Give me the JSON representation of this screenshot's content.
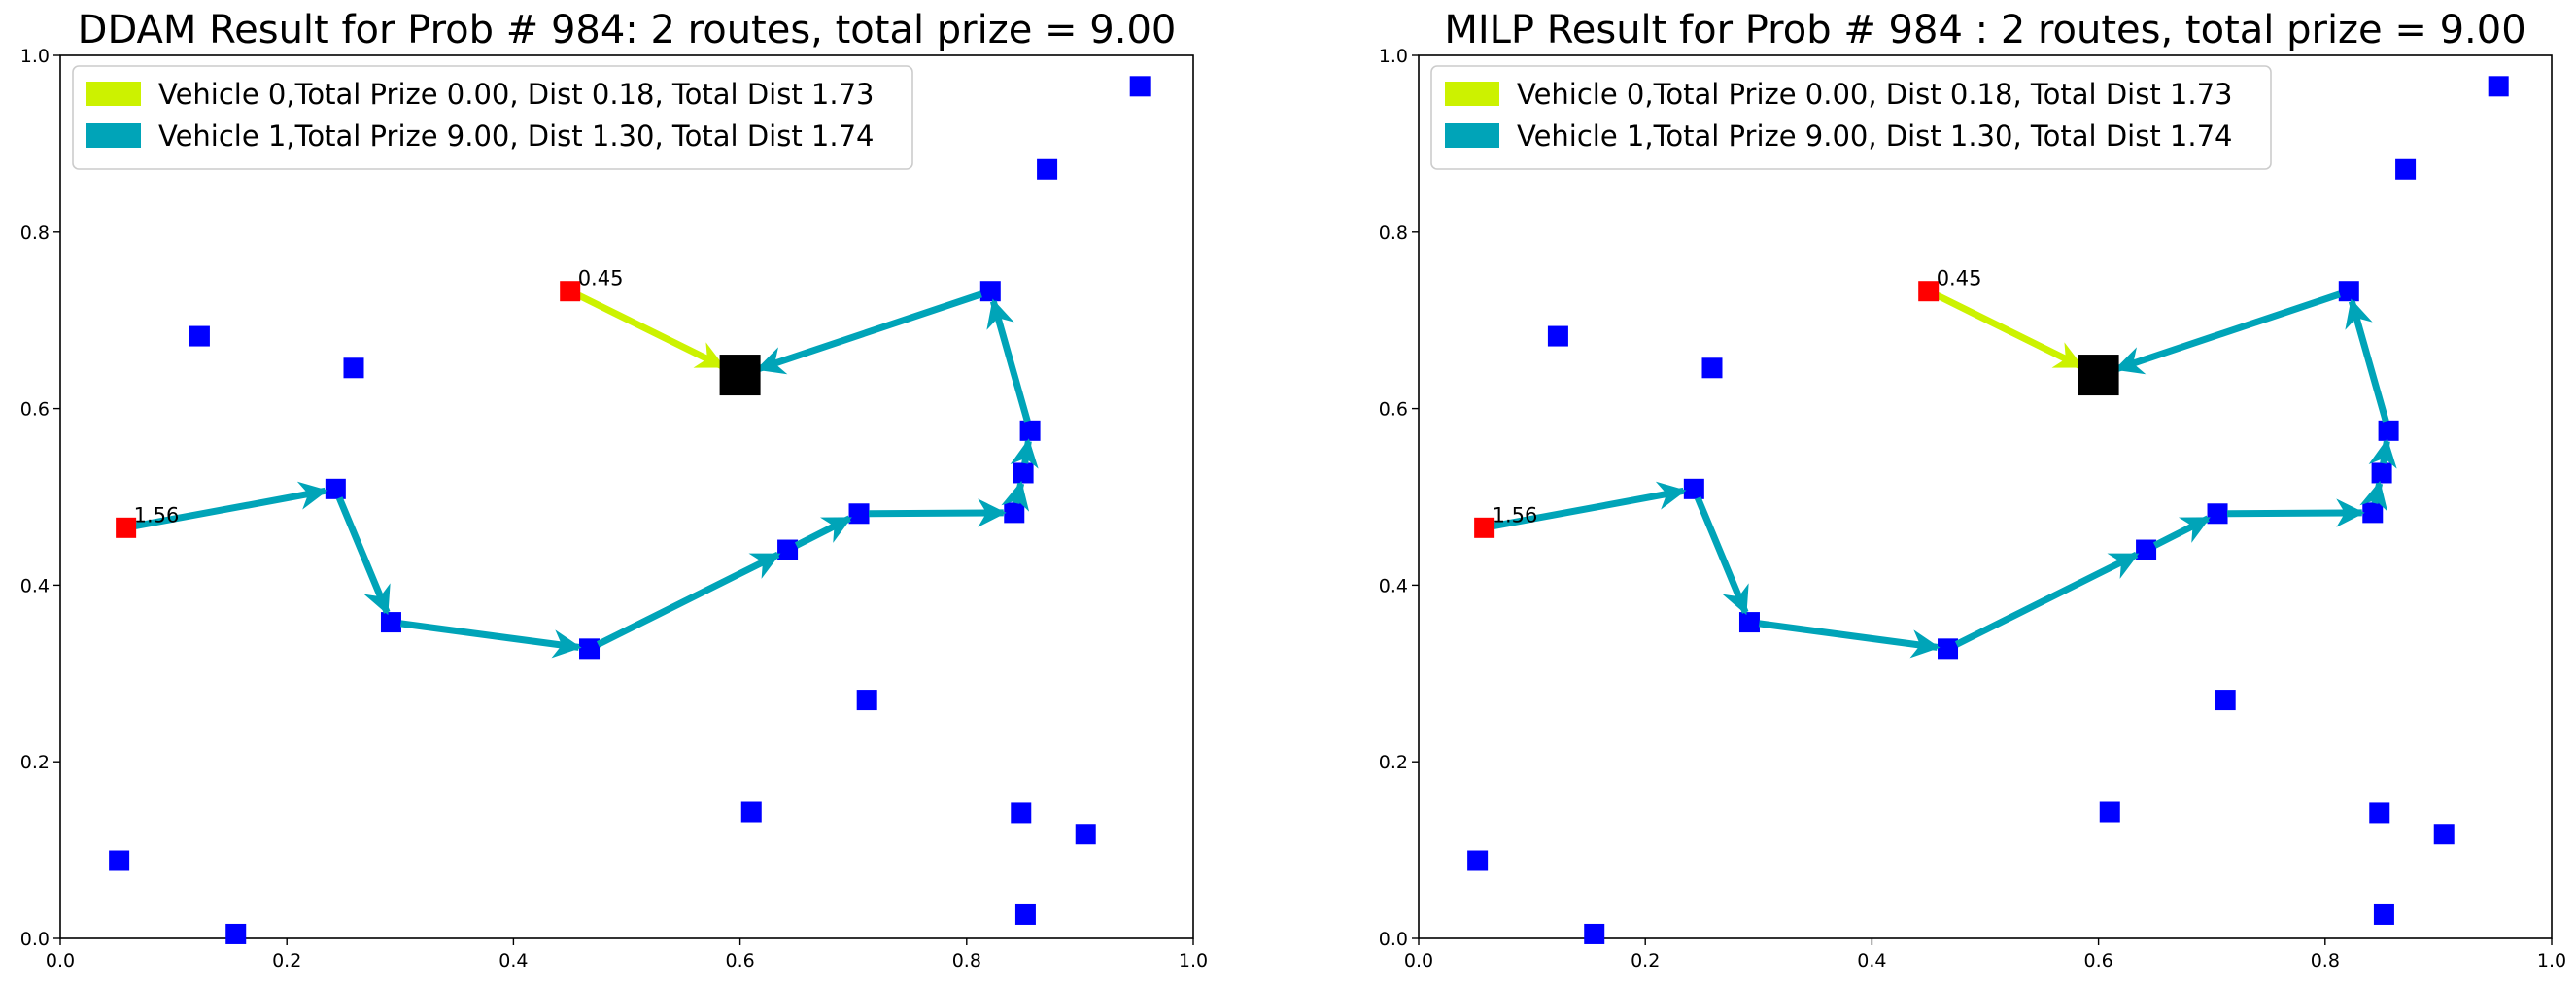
{
  "chart_data": [
    {
      "type": "scatter",
      "title": "DDAM Result for Prob # 984: 2 routes, total prize = 9.00",
      "xlim": [
        0,
        1
      ],
      "ylim": [
        0,
        1
      ],
      "x_ticks": [
        "0.0",
        "0.2",
        "0.4",
        "0.6",
        "0.8",
        "1.0"
      ],
      "y_ticks": [
        "0.0",
        "0.2",
        "0.4",
        "0.6",
        "0.8",
        "1.0"
      ],
      "legend_position": "upper-left",
      "depot": {
        "x": 0.6,
        "y": 0.638,
        "color": "#000000"
      },
      "nodes": [
        {
          "x": 0.052,
          "y": 0.088
        },
        {
          "x": 0.155,
          "y": 0.005
        },
        {
          "x": 0.123,
          "y": 0.682
        },
        {
          "x": 0.259,
          "y": 0.646
        },
        {
          "x": 0.243,
          "y": 0.509
        },
        {
          "x": 0.292,
          "y": 0.358
        },
        {
          "x": 0.467,
          "y": 0.328
        },
        {
          "x": 0.642,
          "y": 0.44
        },
        {
          "x": 0.705,
          "y": 0.481
        },
        {
          "x": 0.712,
          "y": 0.27
        },
        {
          "x": 0.61,
          "y": 0.143
        },
        {
          "x": 0.842,
          "y": 0.482
        },
        {
          "x": 0.85,
          "y": 0.527
        },
        {
          "x": 0.856,
          "y": 0.575
        },
        {
          "x": 0.821,
          "y": 0.733
        },
        {
          "x": 0.871,
          "y": 0.871
        },
        {
          "x": 0.953,
          "y": 0.965
        },
        {
          "x": 0.848,
          "y": 0.142
        },
        {
          "x": 0.852,
          "y": 0.027
        },
        {
          "x": 0.905,
          "y": 0.118
        }
      ],
      "node_color": "#0000ff",
      "start_nodes": [
        {
          "x": 0.45,
          "y": 0.733,
          "label": "0.45"
        },
        {
          "x": 0.058,
          "y": 0.465,
          "label": "1.56"
        }
      ],
      "start_color": "#ff0000",
      "routes": [
        {
          "name": "Vehicle 0,Total Prize 0.00, Dist 0.18, Total Dist 1.73",
          "color": "#ccf200",
          "path": [
            [
              0.45,
              0.733
            ],
            [
              0.6,
              0.638
            ]
          ]
        },
        {
          "name": "Vehicle 1,Total Prize 9.00, Dist 1.30, Total Dist 1.74",
          "color": "#00a4b8",
          "path": [
            [
              0.058,
              0.465
            ],
            [
              0.243,
              0.509
            ],
            [
              0.292,
              0.358
            ],
            [
              0.467,
              0.328
            ],
            [
              0.642,
              0.44
            ],
            [
              0.705,
              0.481
            ],
            [
              0.842,
              0.482
            ],
            [
              0.85,
              0.527
            ],
            [
              0.856,
              0.575
            ],
            [
              0.821,
              0.733
            ],
            [
              0.6,
              0.638
            ]
          ]
        }
      ]
    },
    {
      "type": "scatter",
      "title": "MILP Result for Prob # 984 : 2 routes, total prize = 9.00",
      "xlim": [
        0,
        1
      ],
      "ylim": [
        0,
        1
      ],
      "x_ticks": [
        "0.0",
        "0.2",
        "0.4",
        "0.6",
        "0.8",
        "1.0"
      ],
      "y_ticks": [
        "0.0",
        "0.2",
        "0.4",
        "0.6",
        "0.8",
        "1.0"
      ],
      "legend_position": "upper-left",
      "depot": {
        "x": 0.6,
        "y": 0.638,
        "color": "#000000"
      },
      "nodes": [
        {
          "x": 0.052,
          "y": 0.088
        },
        {
          "x": 0.155,
          "y": 0.005
        },
        {
          "x": 0.123,
          "y": 0.682
        },
        {
          "x": 0.259,
          "y": 0.646
        },
        {
          "x": 0.243,
          "y": 0.509
        },
        {
          "x": 0.292,
          "y": 0.358
        },
        {
          "x": 0.467,
          "y": 0.328
        },
        {
          "x": 0.642,
          "y": 0.44
        },
        {
          "x": 0.705,
          "y": 0.481
        },
        {
          "x": 0.712,
          "y": 0.27
        },
        {
          "x": 0.61,
          "y": 0.143
        },
        {
          "x": 0.842,
          "y": 0.482
        },
        {
          "x": 0.85,
          "y": 0.527
        },
        {
          "x": 0.856,
          "y": 0.575
        },
        {
          "x": 0.821,
          "y": 0.733
        },
        {
          "x": 0.871,
          "y": 0.871
        },
        {
          "x": 0.953,
          "y": 0.965
        },
        {
          "x": 0.848,
          "y": 0.142
        },
        {
          "x": 0.852,
          "y": 0.027
        },
        {
          "x": 0.905,
          "y": 0.118
        }
      ],
      "node_color": "#0000ff",
      "start_nodes": [
        {
          "x": 0.45,
          "y": 0.733,
          "label": "0.45"
        },
        {
          "x": 0.058,
          "y": 0.465,
          "label": "1.56"
        }
      ],
      "start_color": "#ff0000",
      "routes": [
        {
          "name": "Vehicle 0,Total Prize 0.00, Dist 0.18, Total Dist 1.73",
          "color": "#ccf200",
          "path": [
            [
              0.45,
              0.733
            ],
            [
              0.6,
              0.638
            ]
          ]
        },
        {
          "name": "Vehicle 1,Total Prize 9.00, Dist 1.30, Total Dist 1.74",
          "color": "#00a4b8",
          "path": [
            [
              0.058,
              0.465
            ],
            [
              0.243,
              0.509
            ],
            [
              0.292,
              0.358
            ],
            [
              0.467,
              0.328
            ],
            [
              0.642,
              0.44
            ],
            [
              0.705,
              0.481
            ],
            [
              0.842,
              0.482
            ],
            [
              0.85,
              0.527
            ],
            [
              0.856,
              0.575
            ],
            [
              0.821,
              0.733
            ],
            [
              0.6,
              0.638
            ]
          ]
        }
      ]
    }
  ]
}
